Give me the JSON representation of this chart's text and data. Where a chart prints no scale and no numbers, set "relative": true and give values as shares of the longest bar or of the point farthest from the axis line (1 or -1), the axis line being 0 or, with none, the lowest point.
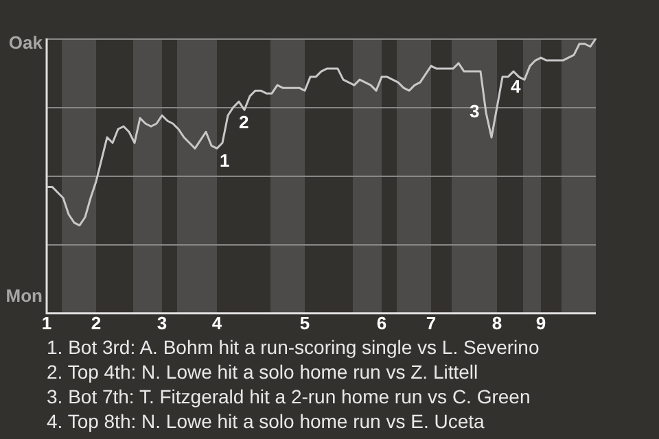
{
  "chart_data": {
    "type": "line",
    "relative": true,
    "categories": [
      "1",
      null,
      null,
      null,
      null,
      null,
      null,
      null,
      null,
      "2",
      null,
      null,
      null,
      null,
      null,
      null,
      null,
      null,
      null,
      null,
      null,
      "3",
      null,
      null,
      null,
      null,
      null,
      null,
      null,
      null,
      null,
      "4",
      null,
      null,
      null,
      null,
      null,
      null,
      null,
      null,
      null,
      null,
      null,
      null,
      null,
      null,
      null,
      "5",
      null,
      null,
      null,
      null,
      null,
      null,
      null,
      null,
      null,
      null,
      null,
      null,
      null,
      "6",
      null,
      null,
      null,
      null,
      null,
      null,
      null,
      null,
      "7",
      null,
      null,
      null,
      null,
      null,
      null,
      null,
      null,
      null,
      null,
      null,
      "8",
      null,
      null,
      null,
      null,
      null,
      null,
      null,
      "9",
      null,
      null,
      null,
      null,
      null,
      null,
      null,
      null,
      null,
      null
    ],
    "values": [
      0.46,
      0.46,
      0.44,
      0.42,
      0.36,
      0.33,
      0.32,
      0.35,
      0.42,
      0.48,
      0.56,
      0.64,
      0.62,
      0.67,
      0.68,
      0.66,
      0.62,
      0.71,
      0.69,
      0.68,
      0.69,
      0.72,
      0.7,
      0.69,
      0.67,
      0.64,
      0.62,
      0.6,
      0.63,
      0.66,
      0.61,
      0.6,
      0.62,
      0.72,
      0.75,
      0.77,
      0.74,
      0.79,
      0.81,
      0.81,
      0.8,
      0.8,
      0.83,
      0.82,
      0.82,
      0.82,
      0.82,
      0.81,
      0.86,
      0.86,
      0.88,
      0.89,
      0.89,
      0.89,
      0.85,
      0.84,
      0.83,
      0.85,
      0.84,
      0.83,
      0.81,
      0.86,
      0.86,
      0.85,
      0.84,
      0.82,
      0.81,
      0.83,
      0.84,
      0.87,
      0.9,
      0.89,
      0.89,
      0.89,
      0.89,
      0.91,
      0.88,
      0.88,
      0.88,
      0.88,
      0.73,
      0.64,
      0.75,
      0.86,
      0.86,
      0.88,
      0.86,
      0.85,
      0.9,
      0.92,
      0.93,
      0.92,
      0.92,
      0.92,
      0.92,
      0.93,
      0.94,
      0.98,
      0.98,
      0.97,
      1.0
    ],
    "color": "#c8c8c8",
    "grid": "y",
    "marker": "none",
    "line_style": "solid",
    "annotations": [
      "Oak",
      "Mon",
      "1",
      "2",
      "3",
      "4",
      "1. Bot 3rd: A. Bohm hit a run-scoring single vs L. Severino",
      "2. Top 4th: N. Lowe hit a solo home run vs Z. Littell",
      "3. Bot 7th: T. Fitzgerald hit a 2-run home run vs C. Green",
      "4. Top 8th: N. Lowe hit a solo home run vs E. Uceta"
    ]
  }
}
